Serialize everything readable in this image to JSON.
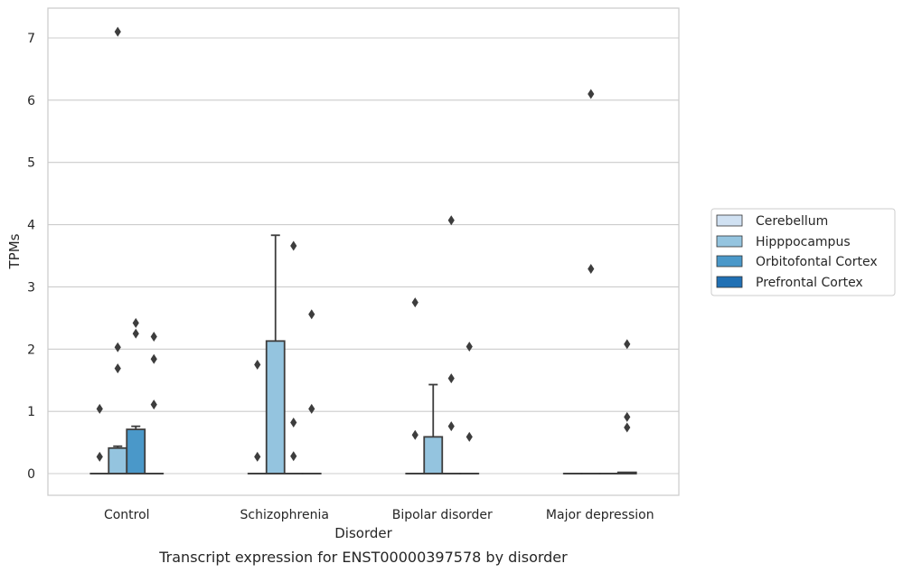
{
  "chart_data": {
    "type": "box",
    "caption": "Transcript expression for ENST00000397578 by disorder",
    "xlabel": "Disorder",
    "ylabel": "TPMs",
    "ylim": [
      -0.35,
      7.5
    ],
    "yticks": [
      0,
      1,
      2,
      3,
      4,
      5,
      6,
      7
    ],
    "grid": true,
    "legend_position": "right",
    "categories": [
      "Control",
      "Schizophrenia",
      "Bipolar disorder",
      "Major depression"
    ],
    "series": [
      {
        "name": "Cerebellum",
        "color": "#d0e1f2",
        "boxes": [
          {
            "q1": 0,
            "median": 0,
            "q3": 0,
            "whisker_low": 0,
            "whisker_high": 0,
            "outliers": [
              0.27,
              1.04
            ]
          },
          {
            "q1": 0,
            "median": 0,
            "q3": 0,
            "whisker_low": 0,
            "whisker_high": 0,
            "outliers": [
              0.27,
              1.75
            ]
          },
          {
            "q1": 0,
            "median": 0,
            "q3": 0,
            "whisker_low": 0,
            "whisker_high": 0,
            "outliers": [
              0.62,
              2.75
            ]
          },
          {
            "q1": 0,
            "median": 0,
            "q3": 0,
            "whisker_low": 0,
            "whisker_high": 0,
            "outliers": []
          }
        ]
      },
      {
        "name": "Hipppocampus",
        "color": "#94c4df",
        "boxes": [
          {
            "q1": 0,
            "median": 0,
            "q3": 0.41,
            "whisker_low": 0,
            "whisker_high": 0.44,
            "outliers": [
              1.69,
              2.03,
              7.1
            ]
          },
          {
            "q1": 0,
            "median": 0,
            "q3": 2.13,
            "whisker_low": 0,
            "whisker_high": 3.83,
            "outliers": []
          },
          {
            "q1": 0,
            "median": 0,
            "q3": 0.59,
            "whisker_low": 0,
            "whisker_high": 1.43,
            "outliers": []
          },
          {
            "q1": 0,
            "median": 0,
            "q3": 0,
            "whisker_low": 0,
            "whisker_high": 0,
            "outliers": [
              3.29,
              6.1
            ]
          }
        ]
      },
      {
        "name": "Orbitofontal Cortex",
        "color": "#4a98c9",
        "boxes": [
          {
            "q1": 0,
            "median": 0,
            "q3": 0.71,
            "whisker_low": 0,
            "whisker_high": 0.76,
            "outliers": [
              2.25,
              2.42
            ]
          },
          {
            "q1": 0,
            "median": 0,
            "q3": 0,
            "whisker_low": 0,
            "whisker_high": 0,
            "outliers": [
              0.28,
              0.82,
              3.66
            ]
          },
          {
            "q1": 0,
            "median": 0,
            "q3": 0,
            "whisker_low": 0,
            "whisker_high": 0,
            "outliers": [
              0.76,
              1.53,
              4.07
            ]
          },
          {
            "q1": 0,
            "median": 0,
            "q3": 0,
            "whisker_low": 0,
            "whisker_high": 0,
            "outliers": []
          }
        ]
      },
      {
        "name": "Prefrontal Cortex",
        "color": "#2070b4",
        "boxes": [
          {
            "q1": 0,
            "median": 0,
            "q3": 0,
            "whisker_low": 0,
            "whisker_high": 0,
            "outliers": [
              1.11,
              1.84,
              2.2
            ]
          },
          {
            "q1": 0,
            "median": 0,
            "q3": 0,
            "whisker_low": 0,
            "whisker_high": 0,
            "outliers": [
              1.04,
              2.56
            ]
          },
          {
            "q1": 0,
            "median": 0,
            "q3": 0,
            "whisker_low": 0,
            "whisker_high": 0,
            "outliers": [
              0.59,
              2.04
            ]
          },
          {
            "q1": 0,
            "median": 0,
            "q3": 0.02,
            "whisker_low": 0,
            "whisker_high": 0.02,
            "outliers": [
              0.74,
              0.91,
              2.08
            ]
          }
        ]
      }
    ]
  }
}
